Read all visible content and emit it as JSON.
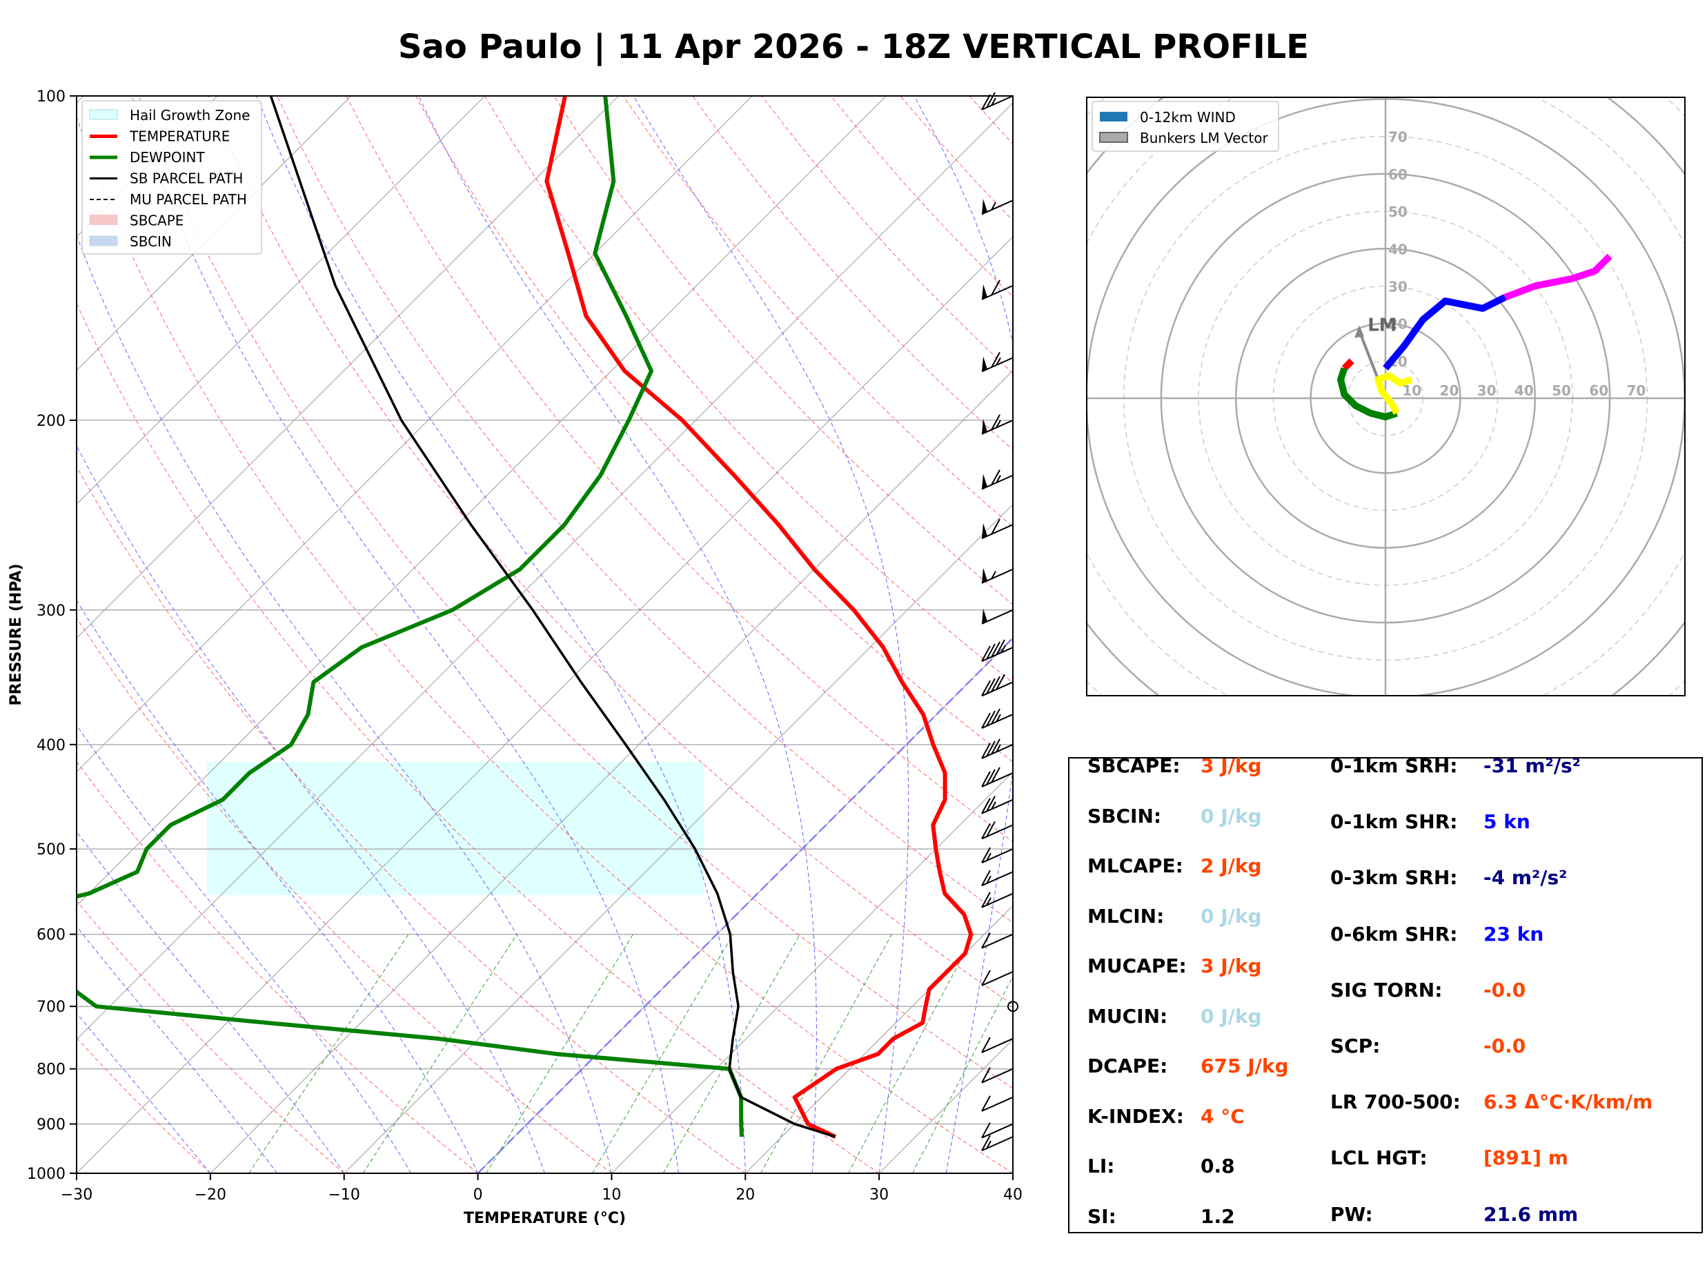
{
  "title": "Sao Paulo | 11 Apr 2026 - 18Z VERTICAL PROFILE",
  "colors": {
    "temperature": "#ff0000",
    "dewpoint": "#008000",
    "parcel": "#000000",
    "hail": "#e0ffff",
    "orange": "#ff4500",
    "lightblue": "#add8e6",
    "navy": "#000080",
    "blue": "#0000ff"
  },
  "chart_data": [
    {
      "type": "line",
      "name": "skew-t",
      "xlabel": "TEMPERATURE (°C)",
      "ylabel": "PRESSURE (HPA)",
      "xlim": [
        -30,
        40
      ],
      "ylim": [
        1000,
        100
      ],
      "x_ticks": [
        -30,
        -20,
        -10,
        0,
        10,
        20,
        30,
        40
      ],
      "x_tick_labels": [
        "−30",
        "−20",
        "−10",
        "0",
        "10",
        "20",
        "30",
        "40"
      ],
      "y_ticks": [
        1000,
        900,
        800,
        700,
        600,
        500,
        400,
        300,
        200,
        100
      ],
      "y_tick_labels": [
        "1000",
        "900",
        "800",
        "700",
        "600",
        "500",
        "400",
        "300",
        "200",
        "100"
      ],
      "legend": [
        "Hail Growth Zone",
        "TEMPERATURE",
        "DEWPOINT",
        "SB PARCEL PATH",
        "MU PARCEL PATH",
        "SBCAPE",
        "SBCIN"
      ],
      "series": [
        {
          "name": "TEMPERATURE",
          "points": [
            [
              925,
              24
            ],
            [
              900,
              21
            ],
            [
              850,
              18
            ],
            [
              800,
              19
            ],
            [
              775,
              21
            ],
            [
              750,
              21
            ],
            [
              725,
              22
            ],
            [
              700,
              21
            ],
            [
              675,
              20
            ],
            [
              650,
              20
            ],
            [
              625,
              20
            ],
            [
              600,
              19
            ],
            [
              575,
              17
            ],
            [
              550,
              14
            ],
            [
              525,
              12
            ],
            [
              500,
              10
            ],
            [
              475,
              8
            ],
            [
              450,
              7
            ],
            [
              425,
              5
            ],
            [
              400,
              2
            ],
            [
              375,
              -1
            ],
            [
              350,
              -5
            ],
            [
              325,
              -9
            ],
            [
              300,
              -14
            ],
            [
              275,
              -20
            ],
            [
              250,
              -26
            ],
            [
              225,
              -33
            ],
            [
              200,
              -41
            ],
            [
              180,
              -49
            ],
            [
              160,
              -56
            ],
            [
              140,
              -62
            ],
            [
              120,
              -69
            ],
            [
              100,
              -74
            ]
          ]
        },
        {
          "name": "DEWPOINT",
          "points": [
            [
              925,
              17
            ],
            [
              900,
              16
            ],
            [
              850,
              14
            ],
            [
              800,
              11
            ],
            [
              775,
              -3
            ],
            [
              750,
              -13
            ],
            [
              725,
              -27
            ],
            [
              700,
              -41
            ],
            [
              675,
              -44
            ],
            [
              650,
              -48
            ],
            [
              625,
              -52
            ],
            [
              600,
              -56
            ],
            [
              575,
              -55
            ],
            [
              550,
              -50
            ],
            [
              525,
              -48
            ],
            [
              500,
              -49
            ],
            [
              475,
              -49
            ],
            [
              450,
              -47
            ],
            [
              425,
              -47
            ],
            [
              400,
              -46
            ],
            [
              375,
              -47
            ],
            [
              350,
              -49
            ],
            [
              325,
              -48
            ],
            [
              300,
              -44
            ],
            [
              275,
              -42
            ],
            [
              250,
              -42
            ],
            [
              225,
              -43
            ],
            [
              200,
              -45
            ],
            [
              180,
              -47
            ],
            [
              160,
              -53
            ],
            [
              140,
              -60
            ],
            [
              120,
              -64
            ],
            [
              100,
              -71
            ]
          ]
        },
        {
          "name": "SB PARCEL PATH",
          "points": [
            [
              925,
              24
            ],
            [
              900,
              20
            ],
            [
              850,
              14
            ],
            [
              800,
              11
            ],
            [
              750,
              9
            ],
            [
              700,
              7
            ],
            [
              650,
              4
            ],
            [
              600,
              1
            ],
            [
              550,
              -3
            ],
            [
              500,
              -8
            ],
            [
              450,
              -14
            ],
            [
              400,
              -21
            ],
            [
              350,
              -29
            ],
            [
              300,
              -38
            ],
            [
              250,
              -49
            ],
            [
              200,
              -62
            ],
            [
              150,
              -77
            ],
            [
              100,
              -96
            ]
          ]
        }
      ],
      "hail_growth_zone_hpa": [
        552,
        415
      ],
      "wind_barbs_kn": [
        {
          "p": 100,
          "spd": 25
        },
        {
          "p": 125,
          "spd": 55
        },
        {
          "p": 150,
          "spd": 60
        },
        {
          "p": 175,
          "spd": 65
        },
        {
          "p": 200,
          "spd": 65
        },
        {
          "p": 225,
          "spd": 65
        },
        {
          "p": 250,
          "spd": 60
        },
        {
          "p": 275,
          "spd": 55
        },
        {
          "p": 300,
          "spd": 50
        },
        {
          "p": 325,
          "spd": 45
        },
        {
          "p": 350,
          "spd": 40
        },
        {
          "p": 375,
          "spd": 35
        },
        {
          "p": 400,
          "spd": 35
        },
        {
          "p": 425,
          "spd": 30
        },
        {
          "p": 450,
          "spd": 25
        },
        {
          "p": 475,
          "spd": 20
        },
        {
          "p": 500,
          "spd": 15
        },
        {
          "p": 525,
          "spd": 15
        },
        {
          "p": 550,
          "spd": 15
        },
        {
          "p": 600,
          "spd": 10
        },
        {
          "p": 650,
          "spd": 10
        },
        {
          "p": 700,
          "spd": 0
        },
        {
          "p": 750,
          "spd": 10
        },
        {
          "p": 800,
          "spd": 10
        },
        {
          "p": 850,
          "spd": 10
        },
        {
          "p": 900,
          "spd": 10
        },
        {
          "p": 925,
          "spd": 15
        }
      ]
    },
    {
      "type": "line",
      "name": "hodograph",
      "legend": [
        "0-12km WIND",
        "Bunkers LM Vector"
      ],
      "ring_labels": [
        "10",
        "20",
        "30",
        "40",
        "50",
        "60",
        "70"
      ],
      "range_kn": [
        -80,
        80
      ],
      "lm_label": "LM",
      "lm_vector": [
        -7,
        18
      ],
      "segments": [
        {
          "color": "#ff0000",
          "points": [
            [
              -9,
              10
            ],
            [
              -11,
              8
            ]
          ]
        },
        {
          "color": "#008000",
          "points": [
            [
              -11,
              8
            ],
            [
              -12,
              5
            ],
            [
              -11,
              1
            ],
            [
              -8,
              -2
            ],
            [
              -4,
              -4
            ],
            [
              0,
              -5
            ],
            [
              3,
              -4
            ]
          ]
        },
        {
          "color": "#ffff00",
          "points": [
            [
              3,
              -4
            ],
            [
              2,
              -2
            ],
            [
              -1,
              2
            ],
            [
              -2,
              5
            ],
            [
              1,
              6
            ],
            [
              4,
              4
            ],
            [
              7,
              5
            ]
          ]
        },
        {
          "color": "#0000ff",
          "points": [
            [
              0,
              8
            ],
            [
              5,
              14
            ],
            [
              10,
              21
            ],
            [
              16,
              26
            ],
            [
              26,
              24
            ],
            [
              32,
              27
            ]
          ]
        },
        {
          "color": "#ff00ff",
          "points": [
            [
              32,
              27
            ],
            [
              40,
              30
            ],
            [
              50,
              32
            ],
            [
              56,
              34
            ],
            [
              60,
              38
            ]
          ]
        }
      ]
    }
  ],
  "stats": {
    "left": [
      {
        "label": "SBCAPE:",
        "value": "3 J/kg",
        "color": "#ff4500"
      },
      {
        "label": "SBCIN:",
        "value": "0 J/kg",
        "color": "#add8e6"
      },
      {
        "label": "MLCAPE:",
        "value": "2 J/kg",
        "color": "#ff4500"
      },
      {
        "label": "MLCIN:",
        "value": "0 J/kg",
        "color": "#add8e6"
      },
      {
        "label": "MUCAPE:",
        "value": "3 J/kg",
        "color": "#ff4500"
      },
      {
        "label": "MUCIN:",
        "value": "0 J/kg",
        "color": "#add8e6"
      },
      {
        "label": "DCAPE:",
        "value": "675 J/kg",
        "color": "#ff4500"
      },
      {
        "label": "K-INDEX:",
        "value": "4 °C",
        "color": "#ff4500"
      },
      {
        "label": "LI:",
        "value": "0.8",
        "color": "#000000"
      },
      {
        "label": "SI:",
        "value": "1.2",
        "color": "#000000"
      }
    ],
    "right": [
      {
        "label": "0-1km SRH:",
        "value": "-31 m²/s²",
        "color": "#000080"
      },
      {
        "label": "0-1km SHR:",
        "value": "5 kn",
        "color": "#0000ff"
      },
      {
        "label": "0-3km SRH:",
        "value": "-4 m²/s²",
        "color": "#000080"
      },
      {
        "label": "0-6km SHR:",
        "value": "23 kn",
        "color": "#0000ff"
      },
      {
        "label": "SIG TORN:",
        "value": "-0.0",
        "color": "#ff4500"
      },
      {
        "label": "SCP:",
        "value": "-0.0",
        "color": "#ff4500"
      },
      {
        "label": "LR 700-500:",
        "value": "6.3 Δ°C·K/km/m",
        "color": "#ff4500"
      },
      {
        "label": "LCL HGT:",
        "value": "[891] m",
        "color": "#ff4500"
      },
      {
        "label": "PW:",
        "value": "21.6 mm",
        "color": "#000080"
      }
    ]
  }
}
